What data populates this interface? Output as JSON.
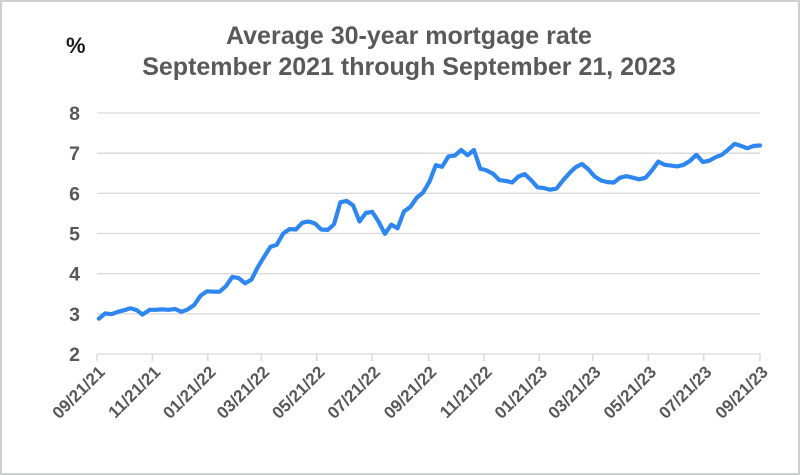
{
  "chart": {
    "title_line1": "Average 30-year mortgage rate",
    "title_line2": "September 2021 through September 21, 2023",
    "y_unit": "%"
  },
  "colors": {
    "line": "#2e86f0",
    "grid": "#dadada",
    "axis_text": "#58585a",
    "title_text": "#595959",
    "unit_text": "#1b1b1b",
    "border": "#cdcfd1",
    "background": "#ffffff"
  },
  "chart_data": {
    "type": "line",
    "title": "Average 30-year mortgage rate September 2021 through September 21, 2023",
    "xlabel": "",
    "ylabel": "%",
    "ylim": [
      2,
      8
    ],
    "yticks": [
      2,
      3,
      4,
      5,
      6,
      7,
      8
    ],
    "xticks": [
      "09/21/21",
      "11/21/21",
      "01/21/22",
      "03/21/22",
      "05/21/22",
      "07/21/22",
      "09/21/22",
      "11/21/22",
      "01/21/23",
      "03/21/23",
      "05/21/23",
      "07/21/23",
      "09/21/23"
    ],
    "x_range": [
      "2021-09-21",
      "2023-09-21"
    ],
    "grid": "horizontal",
    "legend": "none",
    "series": [
      {
        "name": "Average 30-year mortgage rate (%)",
        "dates": [
          "2021-09-23",
          "2021-09-30",
          "2021-10-07",
          "2021-10-14",
          "2021-10-21",
          "2021-10-28",
          "2021-11-04",
          "2021-11-10",
          "2021-11-18",
          "2021-11-24",
          "2021-12-02",
          "2021-12-09",
          "2021-12-16",
          "2021-12-23",
          "2021-12-30",
          "2022-01-06",
          "2022-01-13",
          "2022-01-20",
          "2022-01-27",
          "2022-02-03",
          "2022-02-10",
          "2022-02-17",
          "2022-02-24",
          "2022-03-03",
          "2022-03-10",
          "2022-03-17",
          "2022-03-24",
          "2022-03-31",
          "2022-04-07",
          "2022-04-14",
          "2022-04-21",
          "2022-04-28",
          "2022-05-05",
          "2022-05-12",
          "2022-05-19",
          "2022-05-26",
          "2022-06-02",
          "2022-06-09",
          "2022-06-16",
          "2022-06-23",
          "2022-06-30",
          "2022-07-07",
          "2022-07-14",
          "2022-07-21",
          "2022-07-28",
          "2022-08-04",
          "2022-08-11",
          "2022-08-18",
          "2022-08-25",
          "2022-09-01",
          "2022-09-08",
          "2022-09-15",
          "2022-09-22",
          "2022-09-29",
          "2022-10-06",
          "2022-10-13",
          "2022-10-20",
          "2022-10-27",
          "2022-11-03",
          "2022-11-10",
          "2022-11-17",
          "2022-11-23",
          "2022-12-01",
          "2022-12-08",
          "2022-12-15",
          "2022-12-22",
          "2022-12-29",
          "2023-01-05",
          "2023-01-12",
          "2023-01-19",
          "2023-01-26",
          "2023-02-02",
          "2023-02-09",
          "2023-02-16",
          "2023-02-23",
          "2023-03-02",
          "2023-03-09",
          "2023-03-16",
          "2023-03-23",
          "2023-03-30",
          "2023-04-06",
          "2023-04-13",
          "2023-04-20",
          "2023-04-27",
          "2023-05-04",
          "2023-05-11",
          "2023-05-18",
          "2023-05-25",
          "2023-06-01",
          "2023-06-08",
          "2023-06-15",
          "2023-06-22",
          "2023-06-29",
          "2023-07-06",
          "2023-07-13",
          "2023-07-20",
          "2023-07-27",
          "2023-08-03",
          "2023-08-10",
          "2023-08-17",
          "2023-08-24",
          "2023-08-31",
          "2023-09-07",
          "2023-09-14",
          "2023-09-21"
        ],
        "values": [
          2.88,
          3.01,
          2.99,
          3.05,
          3.09,
          3.14,
          3.09,
          2.98,
          3.1,
          3.1,
          3.11,
          3.1,
          3.12,
          3.05,
          3.11,
          3.22,
          3.45,
          3.56,
          3.55,
          3.55,
          3.69,
          3.92,
          3.89,
          3.76,
          3.85,
          4.16,
          4.42,
          4.67,
          4.72,
          5.0,
          5.11,
          5.1,
          5.27,
          5.3,
          5.25,
          5.1,
          5.09,
          5.23,
          5.78,
          5.81,
          5.7,
          5.3,
          5.51,
          5.54,
          5.3,
          4.99,
          5.22,
          5.13,
          5.55,
          5.66,
          5.89,
          6.02,
          6.29,
          6.7,
          6.66,
          6.92,
          6.94,
          7.08,
          6.95,
          7.08,
          6.61,
          6.58,
          6.49,
          6.33,
          6.31,
          6.27,
          6.42,
          6.48,
          6.33,
          6.15,
          6.13,
          6.09,
          6.12,
          6.32,
          6.5,
          6.65,
          6.73,
          6.6,
          6.42,
          6.32,
          6.28,
          6.27,
          6.39,
          6.43,
          6.39,
          6.35,
          6.39,
          6.57,
          6.79,
          6.71,
          6.69,
          6.67,
          6.71,
          6.81,
          6.96,
          6.78,
          6.81,
          6.9,
          6.96,
          7.09,
          7.23,
          7.18,
          7.12,
          7.18,
          7.19
        ]
      }
    ]
  }
}
